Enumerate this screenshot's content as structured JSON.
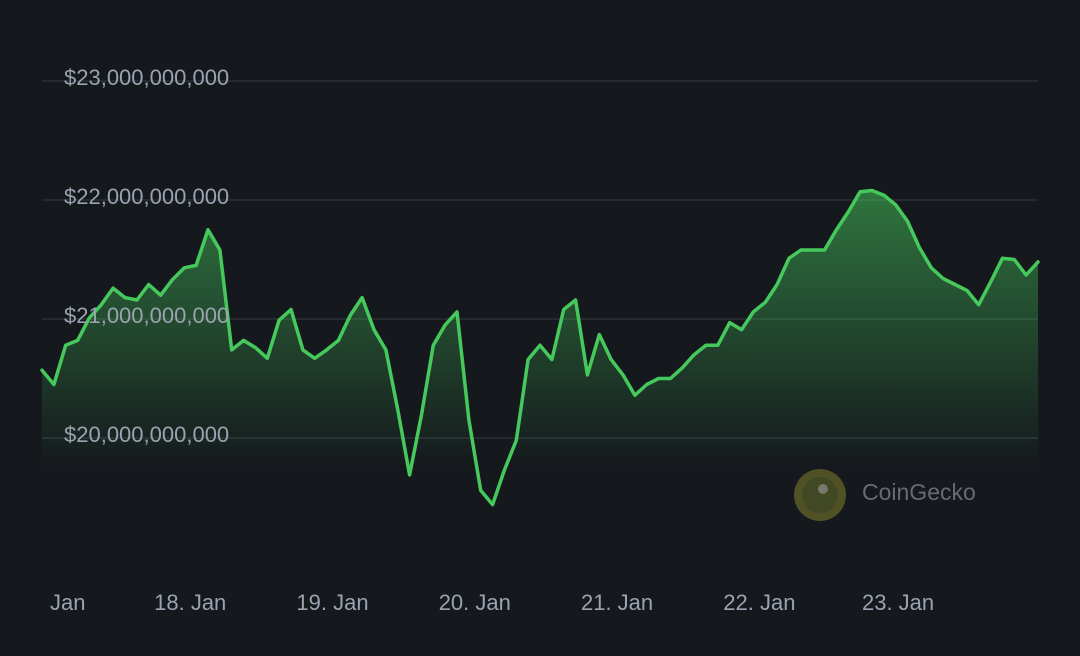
{
  "chart_data": {
    "type": "area",
    "watermark": "CoinGecko",
    "color": "#46c95c",
    "grid": true,
    "xlim": [
      0,
      84
    ],
    "xticks": [
      {
        "value": 0.5,
        "label": "Jan"
      },
      {
        "value": 12.5,
        "label": "18. Jan"
      },
      {
        "value": 24.5,
        "label": "19. Jan"
      },
      {
        "value": 36.5,
        "label": "20. Jan"
      },
      {
        "value": 48.5,
        "label": "21. Jan"
      },
      {
        "value": 60.5,
        "label": "22. Jan"
      },
      {
        "value": 72.2,
        "label": "23. Jan"
      }
    ],
    "ylim": [
      19000000000,
      23300000000
    ],
    "yticks": [
      {
        "value": 20000000000,
        "label": "$20,000,000,000"
      },
      {
        "value": 21000000000,
        "label": "$21,000,000,000"
      },
      {
        "value": 22000000000,
        "label": "$22,000,000,000"
      },
      {
        "value": 23000000000,
        "label": "$23,000,000,000"
      }
    ],
    "values": [
      20570000000,
      20450000000,
      20780000000,
      20820000000,
      21010000000,
      21120000000,
      21260000000,
      21180000000,
      21160000000,
      21290000000,
      21200000000,
      21330000000,
      21430000000,
      21450000000,
      21750000000,
      21580000000,
      20740000000,
      20820000000,
      20760000000,
      20670000000,
      20990000000,
      21080000000,
      20740000000,
      20670000000,
      20740000000,
      20820000000,
      21030000000,
      21180000000,
      20910000000,
      20740000000,
      20240000000,
      19690000000,
      20190000000,
      20780000000,
      20950000000,
      21060000000,
      20150000000,
      19560000000,
      19440000000,
      19730000000,
      19980000000,
      20660000000,
      20780000000,
      20660000000,
      21080000000,
      21160000000,
      20530000000,
      20870000000,
      20660000000,
      20530000000,
      20360000000,
      20450000000,
      20500000000,
      20500000000,
      20590000000,
      20700000000,
      20780000000,
      20780000000,
      20970000000,
      20910000000,
      21060000000,
      21140000000,
      21290000000,
      21510000000,
      21580000000,
      21580000000,
      21580000000,
      21750000000,
      21900000000,
      22070000000,
      22080000000,
      22040000000,
      21960000000,
      21820000000,
      21600000000,
      21430000000,
      21340000000,
      21290000000,
      21240000000,
      21120000000,
      21310000000,
      21510000000,
      21500000000,
      21370000000,
      21480000000
    ]
  }
}
